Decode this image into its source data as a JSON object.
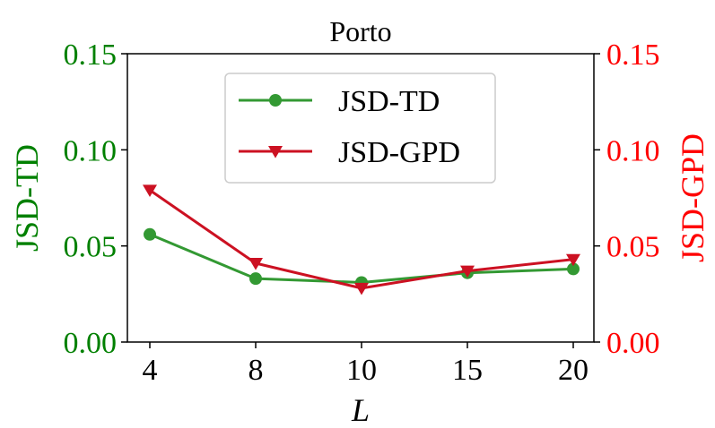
{
  "chart_data": {
    "type": "line",
    "title": "Porto",
    "xlabel": "L",
    "categories": [
      "4",
      "8",
      "10",
      "15",
      "20"
    ],
    "y_left": {
      "label": "JSD-TD",
      "color": "#008000",
      "ylim": [
        0.0,
        0.15
      ],
      "ticks": [
        "0.00",
        "0.05",
        "0.10",
        "0.15"
      ]
    },
    "y_right": {
      "label": "JSD-GPD",
      "color": "#ff0000",
      "ylim": [
        0.0,
        0.15
      ],
      "ticks": [
        "0.00",
        "0.05",
        "0.10",
        "0.15"
      ]
    },
    "series": [
      {
        "name": "JSD-TD",
        "axis": "left",
        "color": "#339933",
        "marker": "circle",
        "values": [
          0.056,
          0.033,
          0.031,
          0.036,
          0.038
        ]
      },
      {
        "name": "JSD-GPD",
        "axis": "right",
        "color": "#cc1122",
        "marker": "triangle-down",
        "values": [
          0.079,
          0.041,
          0.028,
          0.037,
          0.043
        ]
      }
    ],
    "legend": {
      "placement": "top-center"
    },
    "grid": false
  }
}
